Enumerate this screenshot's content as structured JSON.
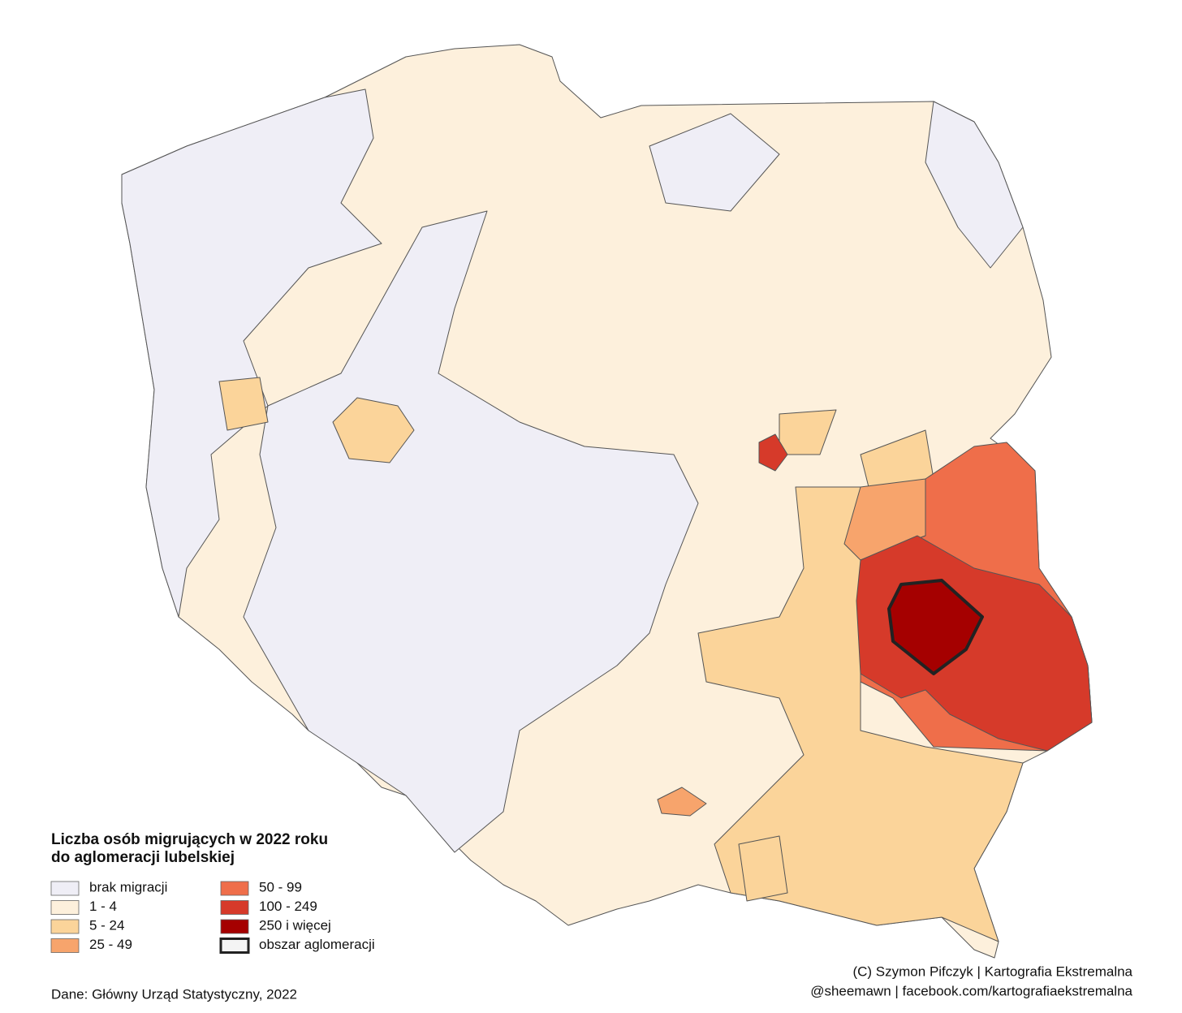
{
  "legend": {
    "title": [
      "Liczba osób migrujących w 2022 roku",
      "do aglomeracji lubelskiej"
    ],
    "items": [
      {
        "label": "brak migracji",
        "color": "#efeef6"
      },
      {
        "label": "1 - 4",
        "color": "#fdf0dc"
      },
      {
        "label": "5 - 24",
        "color": "#fbd49a"
      },
      {
        "label": "25 - 49",
        "color": "#f7a46c"
      },
      {
        "label": "50 - 99",
        "color": "#ef6e4a"
      },
      {
        "label": "100 - 249",
        "color": "#d63a2a"
      },
      {
        "label": "250 i więcej",
        "color": "#a50000"
      },
      {
        "label": "obszar aglomeracji",
        "color": "#f4f4f4",
        "outline": true
      }
    ]
  },
  "source": "Dane: Główny Urząd Statystyczny, 2022",
  "credits": [
    "(C) Szymon Pifczyk | Kartografia Ekstremalna",
    "@sheemawn | facebook.com/kartografiaekstremalna"
  ]
}
